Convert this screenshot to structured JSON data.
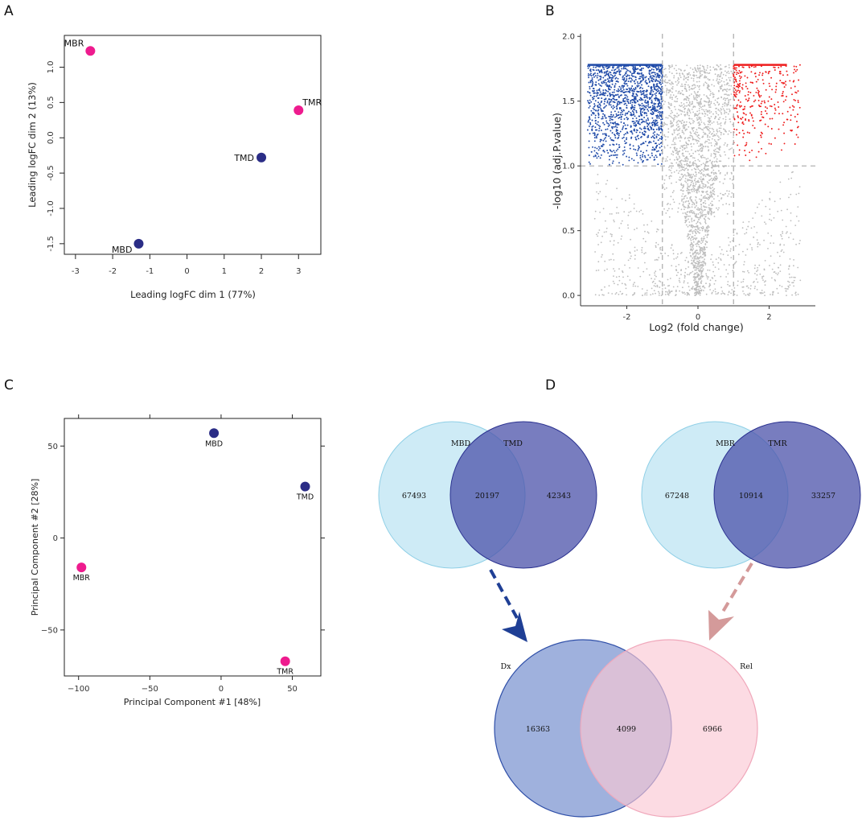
{
  "panel_labels": [
    "A",
    "B",
    "C",
    "D"
  ],
  "colors": {
    "pink": "#ee1b8e",
    "navy": "#2b2d86",
    "blue": "#1f4aa8",
    "red": "#ee1c1c",
    "grey": "#bdbdbd",
    "light_cyan": "#b9e3f2",
    "venn_purple": "#4b52aa",
    "venn_blue": "#7f97d1",
    "venn_pink": "#fbc8d4",
    "arrow_blue": "#1f3f95",
    "arrow_pink": "#d49a9a"
  },
  "chart_data": [
    {
      "id": "A",
      "type": "scatter",
      "xlabel": "Leading logFC dim 1 (77%)",
      "ylabel": "Leading logFC dim 2 (13%)",
      "xlim": [
        -3.3,
        3.6
      ],
      "ylim": [
        -1.65,
        1.45
      ],
      "xticks": [
        -3,
        -2,
        -1,
        0,
        1,
        2,
        3
      ],
      "yticks": [
        -1.5,
        -1.0,
        -0.5,
        0.0,
        0.5,
        1.0
      ],
      "ytick_labels": [
        "-1.5",
        "-1.0",
        "-0.5",
        "0.0",
        "0.5",
        "1.0"
      ],
      "points": [
        {
          "label": "MBR",
          "x": -2.6,
          "y": 1.23,
          "color": "pink",
          "label_pos": "above-left"
        },
        {
          "label": "TMR",
          "x": 3.0,
          "y": 0.39,
          "color": "pink",
          "label_pos": "above-right"
        },
        {
          "label": "TMD",
          "x": 2.0,
          "y": -0.28,
          "color": "navy",
          "label_pos": "left"
        },
        {
          "label": "MBD",
          "x": -1.3,
          "y": -1.5,
          "color": "navy",
          "label_pos": "below-left"
        }
      ]
    },
    {
      "id": "B",
      "type": "scatter",
      "subtype": "volcano",
      "xlabel": "Log2 (fold change)",
      "ylabel": "-log10 (adj.P.value)",
      "xlim": [
        -3.3,
        3.3
      ],
      "ylim": [
        -0.08,
        2.02
      ],
      "xticks": [
        -2,
        0,
        2
      ],
      "xtick_labels": [
        "-2",
        "0",
        "2"
      ],
      "yticks": [
        0.0,
        0.5,
        1.0,
        1.5,
        2.0
      ],
      "ytick_labels": [
        "0.0",
        "0.5",
        "1.0",
        "1.5",
        "2.0"
      ],
      "vlines": [
        -1,
        1
      ],
      "hline": 1.0,
      "cap": 1.78,
      "groups": [
        {
          "name": "down",
          "color": "blue",
          "xrange": [
            -3.1,
            -1.0
          ],
          "yrange": [
            1.0,
            1.78
          ]
        },
        {
          "name": "up",
          "color": "red",
          "xrange": [
            1.0,
            2.9
          ],
          "yrange": [
            1.0,
            1.78
          ]
        },
        {
          "name": "ns",
          "color": "grey"
        }
      ]
    },
    {
      "id": "C",
      "type": "scatter",
      "xlabel": "Principal Component #1 [48%]",
      "ylabel": "Principal Component #2 [28%]",
      "xlim": [
        -110,
        70
      ],
      "ylim": [
        -75,
        65
      ],
      "xticks": [
        -100,
        -50,
        0,
        50
      ],
      "xtick_labels": [
        "−100",
        "−50",
        "0",
        "50"
      ],
      "yticks": [
        -50,
        0,
        50
      ],
      "ytick_labels": [
        "−50",
        "0",
        "50"
      ],
      "points": [
        {
          "label": "MBD",
          "x": -5,
          "y": 57,
          "color": "navy"
        },
        {
          "label": "TMD",
          "x": 59,
          "y": 28,
          "color": "navy"
        },
        {
          "label": "MBR",
          "x": -98,
          "y": -16,
          "color": "pink"
        },
        {
          "label": "TMR",
          "x": 45,
          "y": -67,
          "color": "pink"
        }
      ]
    },
    {
      "id": "D",
      "type": "venn",
      "diagrams": [
        {
          "sets": [
            "MBD",
            "TMD"
          ],
          "only_left": 67493,
          "intersection": 20197,
          "only_right": 42343
        },
        {
          "sets": [
            "MBR",
            "TMR"
          ],
          "only_left": 67248,
          "intersection": 10914,
          "only_right": 33257
        },
        {
          "sets": [
            "Dx",
            "Rel"
          ],
          "only_left": 16363,
          "intersection": 4099,
          "only_right": 6966
        }
      ]
    }
  ]
}
